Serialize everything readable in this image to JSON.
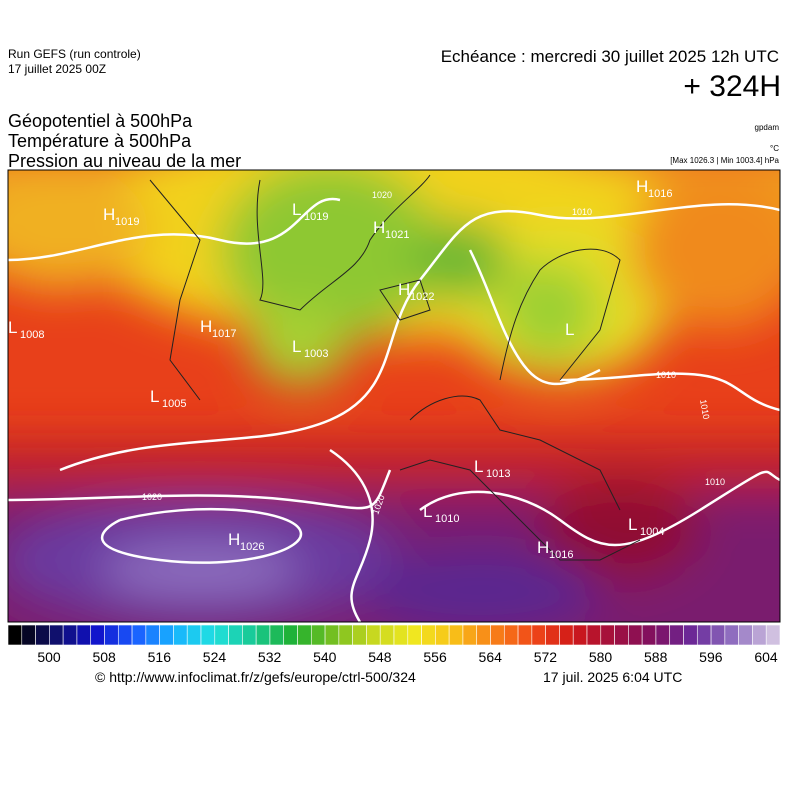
{
  "header": {
    "run": "Run GEFS (run controle)",
    "run_date": "17 juillet 2025 00Z",
    "valid": "Echéance : mercredi 30 juillet 2025 12h UTC",
    "lead": "+ 324H"
  },
  "fields": [
    "Géopotentiel à 500hPa",
    "Température à 500hPa",
    "Pression au niveau de la mer"
  ],
  "units": {
    "geopotential": "gpdam",
    "temperature": "°C",
    "pressure": "[Max 1026.3 | Min 1003.4] hPa"
  },
  "pressure_centers": [
    {
      "letter": "H",
      "value": 1019
    },
    {
      "letter": "L",
      "value": 1019
    },
    {
      "letter": "H",
      "value": 1021
    },
    {
      "letter": "H",
      "value": 1022
    },
    {
      "letter": "L",
      "value": 1008
    },
    {
      "letter": "H",
      "value": 1017
    },
    {
      "letter": "L",
      "value": 1003
    },
    {
      "letter": "L",
      "value": 1005
    },
    {
      "letter": "H",
      "value": 1016
    },
    {
      "letter": "L"
    },
    {
      "letter": "L",
      "value": 1013
    },
    {
      "letter": "L",
      "value": 1010
    },
    {
      "letter": "H",
      "value": 1026
    },
    {
      "letter": "H",
      "value": 1016
    },
    {
      "letter": "L",
      "value": 1004
    }
  ],
  "isobar_labels": [
    1020,
    1020,
    1020,
    1010,
    1010,
    1010,
    1010
  ],
  "colorbar": {
    "ticks": [
      500,
      508,
      516,
      524,
      532,
      540,
      548,
      556,
      564,
      572,
      580,
      588,
      596,
      604
    ]
  },
  "footer": {
    "source": "© http://www.infoclimat.fr/z/gefs/europe/ctrl-500/324",
    "generated": "17 juil. 2025  6:04 UTC"
  }
}
